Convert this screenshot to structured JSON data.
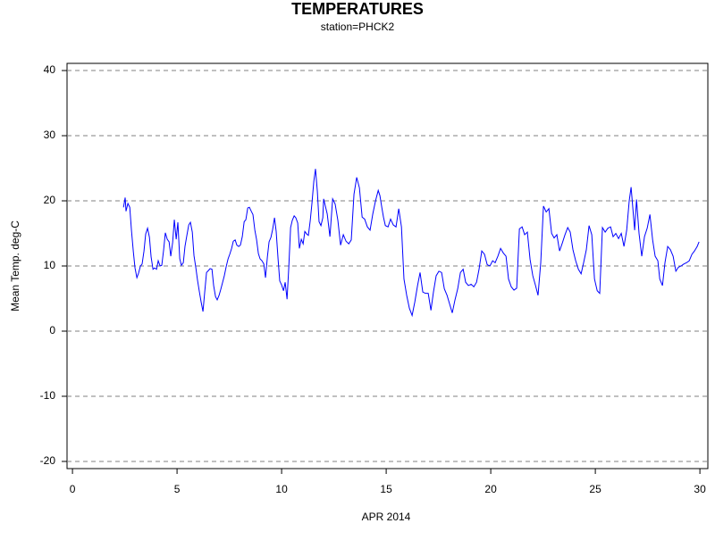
{
  "chart_data": {
    "type": "line",
    "title": "TEMPERATURES",
    "subtitle": "station=PHCK2",
    "x_label": "APR 2014",
    "y_label": "Mean Temp. deg-C",
    "xlim": [
      -0.26,
      30.38
    ],
    "xticks": [
      0,
      5,
      10,
      15,
      20,
      25,
      30
    ],
    "ylim": [
      -21.1,
      41.1
    ],
    "yticks": [
      -20,
      -10,
      0,
      10,
      20,
      30,
      40
    ],
    "grid": true,
    "series": [
      {
        "color": "#0000ff",
        "x": [
          2.44,
          2.52,
          2.56,
          2.65,
          2.74,
          2.82,
          2.91,
          2.99,
          3.08,
          3.16,
          3.25,
          3.33,
          3.42,
          3.5,
          3.59,
          3.68,
          3.76,
          3.85,
          3.93,
          4.02,
          4.1,
          4.19,
          4.27,
          4.36,
          4.44,
          4.53,
          4.62,
          4.7,
          4.79,
          4.87,
          4.96,
          5.04,
          5.13,
          5.21,
          5.3,
          5.38,
          5.47,
          5.56,
          5.64,
          5.73,
          5.81,
          5.9,
          5.98,
          6.07,
          6.15,
          6.24,
          6.32,
          6.41,
          6.5,
          6.58,
          6.67,
          6.75,
          6.84,
          6.92,
          7.01,
          7.09,
          7.18,
          7.26,
          7.35,
          7.44,
          7.52,
          7.61,
          7.69,
          7.78,
          7.86,
          7.95,
          8.03,
          8.12,
          8.21,
          8.29,
          8.38,
          8.46,
          8.55,
          8.63,
          8.72,
          8.8,
          8.89,
          8.97,
          9.06,
          9.15,
          9.23,
          9.32,
          9.4,
          9.49,
          9.57,
          9.66,
          9.74,
          9.83,
          9.91,
          10.0,
          10.09,
          10.17,
          10.26,
          10.34,
          10.43,
          10.51,
          10.6,
          10.68,
          10.77,
          10.85,
          10.94,
          11.03,
          11.11,
          11.2,
          11.28,
          11.37,
          11.45,
          11.54,
          11.62,
          11.71,
          11.79,
          11.88,
          11.97,
          12.01,
          12.18,
          12.31,
          12.44,
          12.56,
          12.69,
          12.82,
          12.95,
          13.08,
          13.21,
          13.33,
          13.46,
          13.59,
          13.72,
          13.85,
          13.97,
          14.1,
          14.23,
          14.36,
          14.49,
          14.62,
          14.7,
          14.79,
          14.87,
          14.96,
          15.09,
          15.21,
          15.34,
          15.47,
          15.6,
          15.73,
          15.85,
          15.98,
          16.11,
          16.24,
          16.37,
          16.5,
          16.62,
          16.75,
          16.88,
          17.01,
          17.14,
          17.26,
          17.39,
          17.52,
          17.65,
          17.78,
          17.91,
          18.03,
          18.16,
          18.29,
          18.42,
          18.55,
          18.68,
          18.8,
          18.93,
          19.06,
          19.19,
          19.32,
          19.44,
          19.57,
          19.7,
          19.83,
          19.96,
          20.09,
          20.21,
          20.34,
          20.47,
          20.6,
          20.73,
          20.85,
          20.98,
          21.11,
          21.24,
          21.37,
          21.5,
          21.62,
          21.75,
          21.88,
          22.01,
          22.14,
          22.26,
          22.39,
          22.52,
          22.65,
          22.78,
          22.91,
          23.03,
          23.16,
          23.29,
          23.42,
          23.55,
          23.68,
          23.8,
          23.93,
          24.06,
          24.19,
          24.32,
          24.44,
          24.57,
          24.7,
          24.83,
          24.96,
          25.09,
          25.21,
          25.34,
          25.47,
          25.6,
          25.73,
          25.85,
          25.98,
          26.11,
          26.24,
          26.37,
          26.5,
          26.62,
          26.71,
          26.79,
          26.88,
          26.97,
          27.09,
          27.22,
          27.35,
          27.48,
          27.61,
          27.74,
          27.86,
          27.99,
          28.08,
          28.21,
          28.33,
          28.46,
          28.59,
          28.72,
          28.85,
          28.97,
          29.1,
          29.23,
          29.36,
          29.49,
          29.62,
          29.74,
          29.87,
          29.96
        ],
        "values": [
          19.0,
          20.5,
          18.4,
          19.6,
          19.0,
          15.5,
          12.2,
          9.7,
          8.2,
          8.9,
          10,
          10.3,
          12.3,
          14.9,
          15.8,
          14.4,
          11.4,
          9.5,
          9.7,
          9.5,
          10.8,
          10,
          10.1,
          12.5,
          15.1,
          14.1,
          13.7,
          11.5,
          13.6,
          17.1,
          14.1,
          16.7,
          11.1,
          10.1,
          10.5,
          13.0,
          14.7,
          16.3,
          16.7,
          15.2,
          11.6,
          9.7,
          7.8,
          6.0,
          4.5,
          3.0,
          5.9,
          9.0,
          9.3,
          9.6,
          9.5,
          7.0,
          5.3,
          4.8,
          5.5,
          6.4,
          7.5,
          8.5,
          9.9,
          11.1,
          11.8,
          12.7,
          13.8,
          14.0,
          13.2,
          13.0,
          13.2,
          14.5,
          16.8,
          17.1,
          18.9,
          19.0,
          18.4,
          17.9,
          15.5,
          14.1,
          11.9,
          11.1,
          10.8,
          10.3,
          8.2,
          11.4,
          13.7,
          14.4,
          15.6,
          17.4,
          15.3,
          11.1,
          7.7,
          7.1,
          6.2,
          7.5,
          4.9,
          9.6,
          15.9,
          17.0,
          17.7,
          17.4,
          16.6,
          12.7,
          14.1,
          13.4,
          15.3,
          14.9,
          14.7,
          17.0,
          19.6,
          23.0,
          24.9,
          21.4,
          16.8,
          16.2,
          17.4,
          20.3,
          18.0,
          14.5,
          20.3,
          19.5,
          17.0,
          13.2,
          14.8,
          13.8,
          13.4,
          14.0,
          21.0,
          23.6,
          22.0,
          17.5,
          17.2,
          16.0,
          15.5,
          18.0,
          20.0,
          21.6,
          20.8,
          19.0,
          17.5,
          16.2,
          16.0,
          17.2,
          16.3,
          16.0,
          18.8,
          16.0,
          8.0,
          5.5,
          3.5,
          2.4,
          4.5,
          7.0,
          9.0,
          6.0,
          5.8,
          5.8,
          3.2,
          6.0,
          8.5,
          9.2,
          9.0,
          6.5,
          5.5,
          4.2,
          2.8,
          4.8,
          6.5,
          9.0,
          9.5,
          7.5,
          7.0,
          7.2,
          6.8,
          7.5,
          9.5,
          12.3,
          11.8,
          10.2,
          10.0,
          10.8,
          10.5,
          11.5,
          12.7,
          12.0,
          11.5,
          8.0,
          6.8,
          6.3,
          6.6,
          15.7,
          16.0,
          14.8,
          15.2,
          11.0,
          8.5,
          7.0,
          5.5,
          10.5,
          19.2,
          18.3,
          18.8,
          15.0,
          14.3,
          14.8,
          12.3,
          13.5,
          14.8,
          15.9,
          15.2,
          12.5,
          10.8,
          9.5,
          8.8,
          10.5,
          12.5,
          16.2,
          14.8,
          8.0,
          6.2,
          5.8,
          15.9,
          15.2,
          15.8,
          16.0,
          14.5,
          15.0,
          14.2,
          15.0,
          13.0,
          15.5,
          20.0,
          22.1,
          19.0,
          15.5,
          20.2,
          15.0,
          11.5,
          14.5,
          15.8,
          17.9,
          14.0,
          11.5,
          10.8,
          8.0,
          7.0,
          10.5,
          13.0,
          12.5,
          11.5,
          9.2,
          9.8,
          10.0,
          10.3,
          10.5,
          10.8,
          11.8,
          12.3,
          13.0,
          13.7
        ]
      }
    ]
  }
}
